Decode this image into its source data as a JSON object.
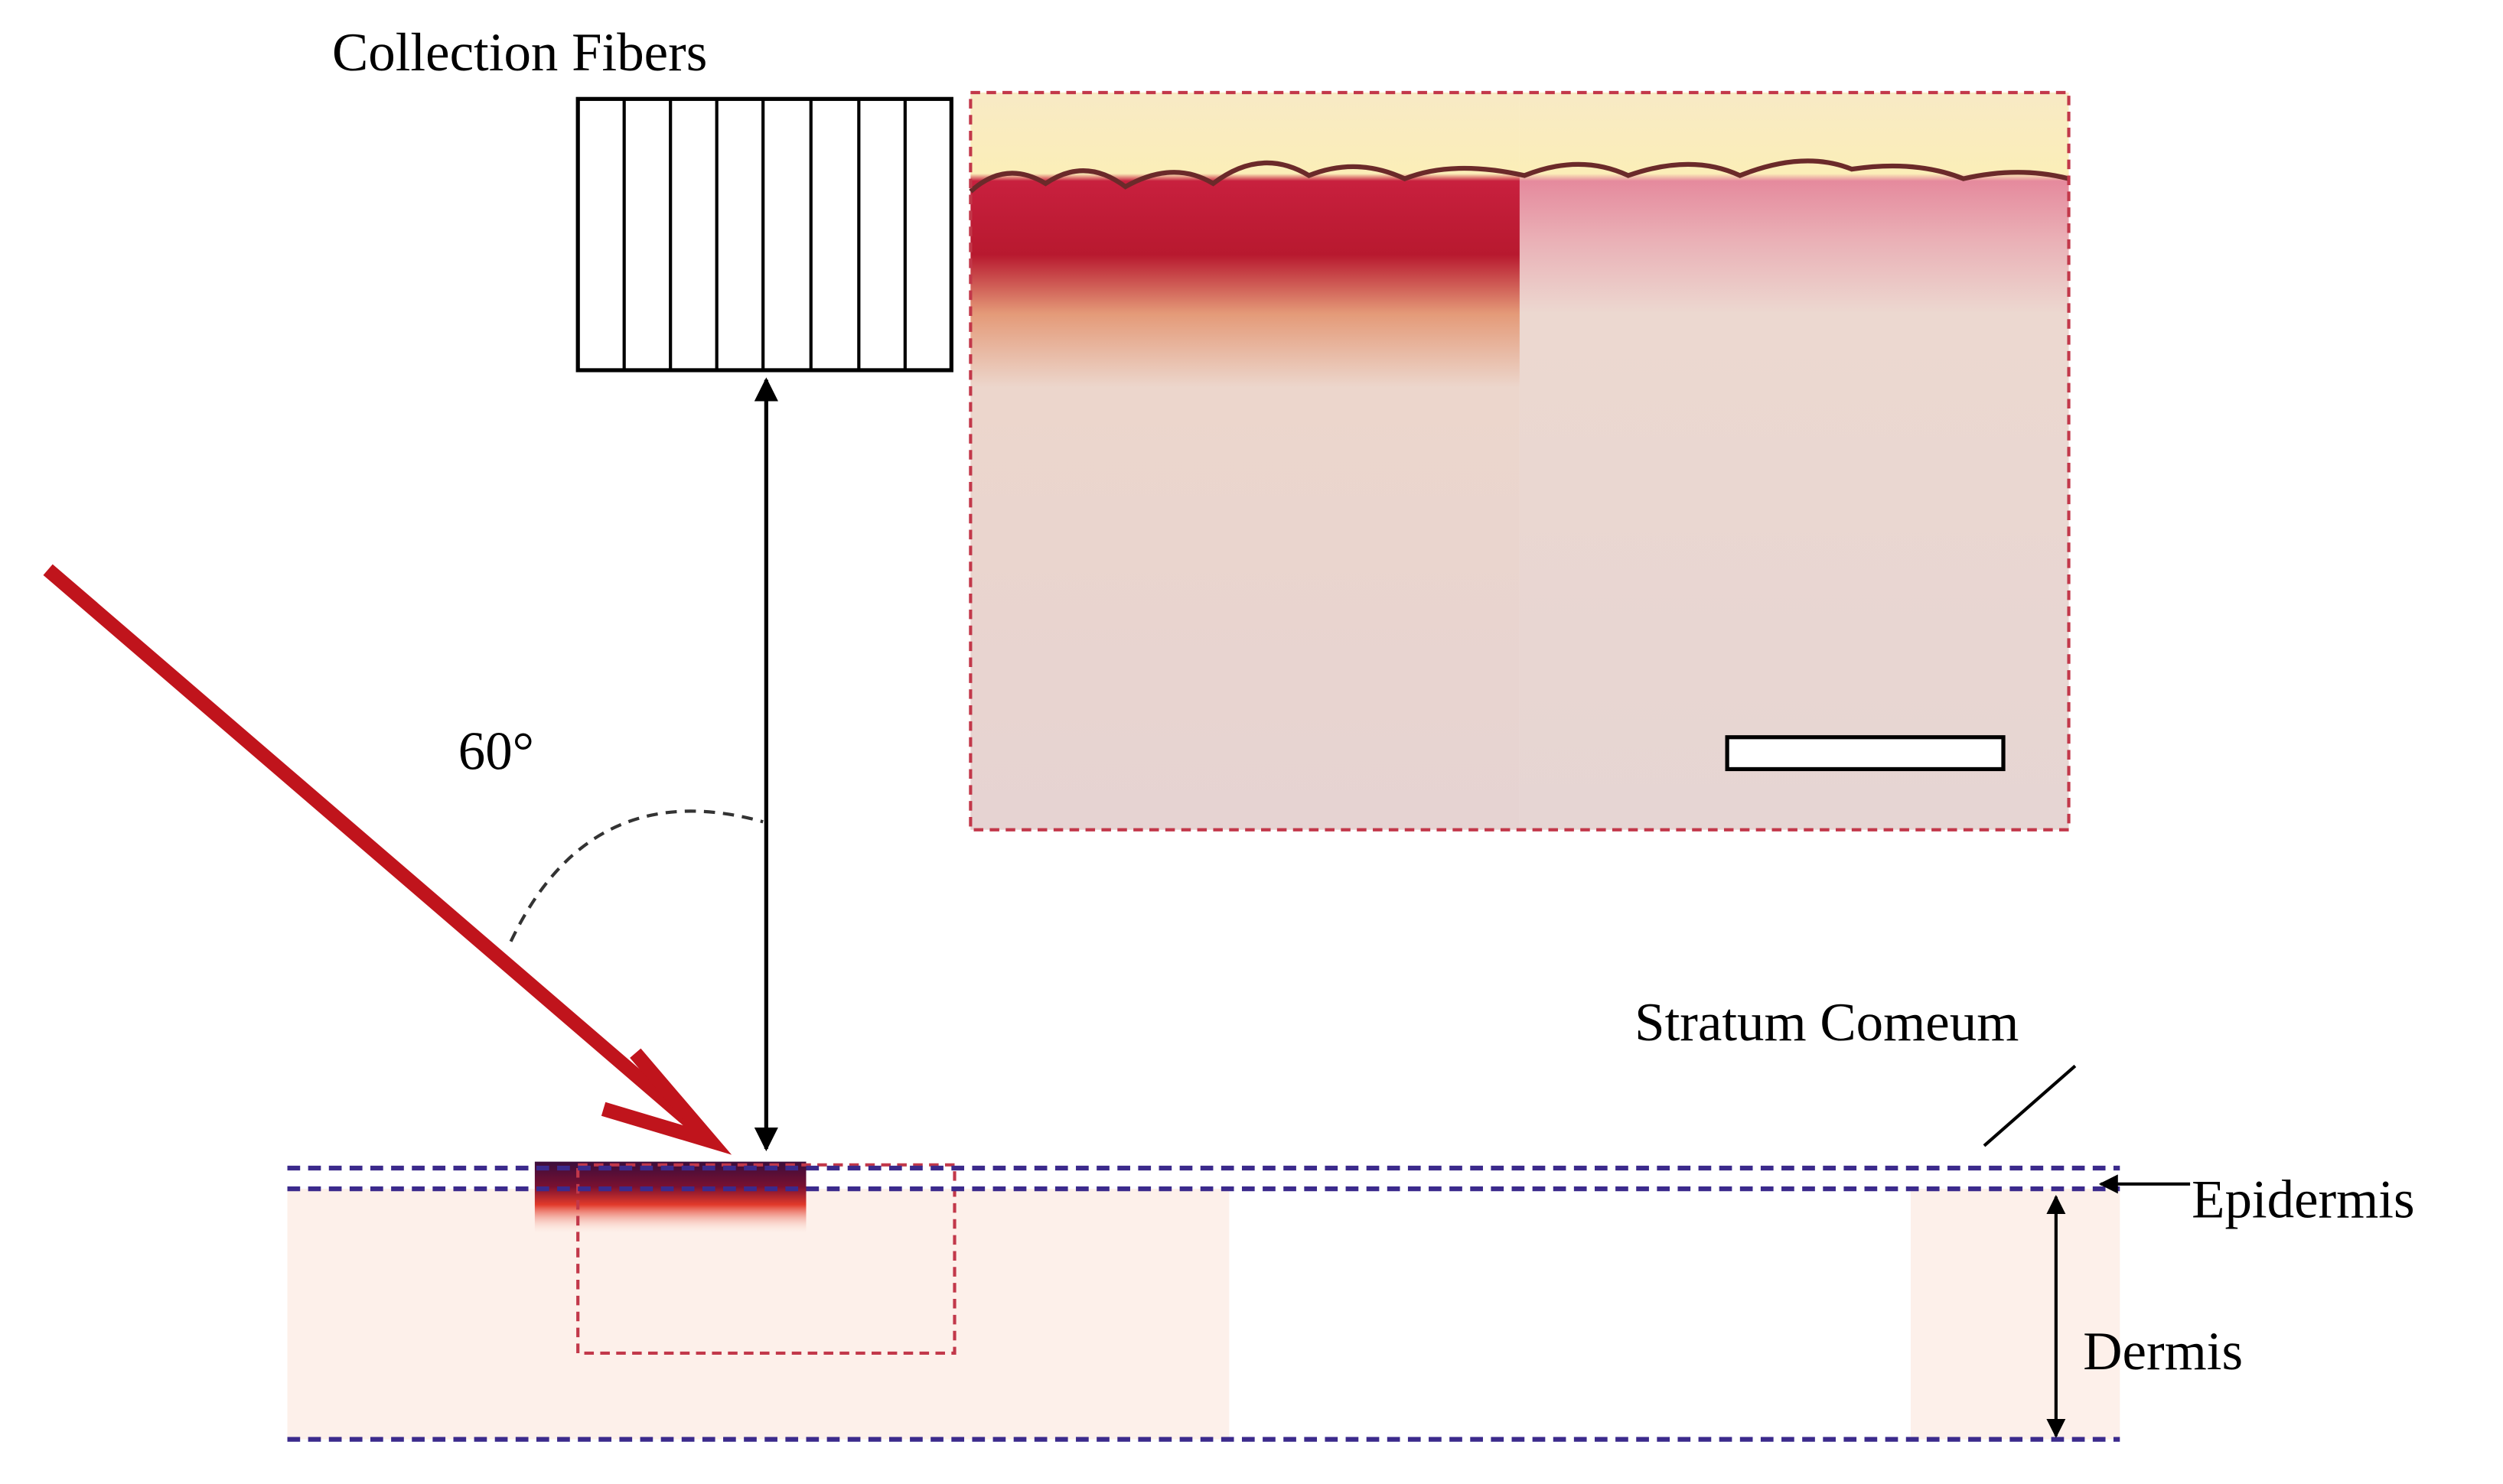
{
  "labels": {
    "collection_fibers": "Collection Fibers",
    "angle": "60°",
    "stratum_corneum": "Stratum Comeum",
    "epidermis": "Epidermis",
    "dermis": "Dermis"
  }
}
